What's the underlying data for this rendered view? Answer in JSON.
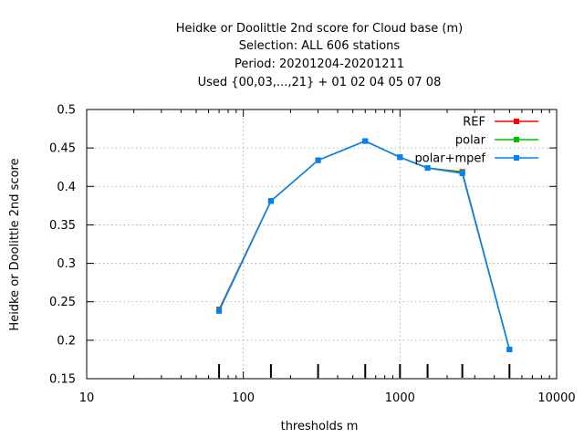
{
  "chart_data": {
    "type": "line",
    "title_lines": [
      "Heidke or Doolittle 2nd score  for Cloud base (m)",
      "Selection: ALL    606 stations",
      "Period: 20201204-20201211",
      "Used {00,03,...,21} + 01 02 04 05 07 08"
    ],
    "xlabel": "thresholds m",
    "ylabel": "Heidke or Doolittle 2nd score",
    "x_scale": "log",
    "xlim": [
      10,
      10000
    ],
    "ylim": [
      0.15,
      0.5
    ],
    "x_ticks": [
      10,
      100,
      1000,
      10000
    ],
    "x_tick_labels": [
      "10",
      "100",
      "1000",
      "10000"
    ],
    "y_ticks": [
      0.15,
      0.2,
      0.25,
      0.3,
      0.35,
      0.4,
      0.45,
      0.5
    ],
    "y_tick_labels": [
      "0.15",
      "0.2",
      "0.25",
      "0.3",
      "0.35",
      "0.4",
      "0.45",
      "0.5"
    ],
    "grid": true,
    "legend_position": "top-right",
    "threshold_markers": [
      70,
      150,
      300,
      600,
      1000,
      1500,
      2500,
      5000
    ],
    "x": [
      70,
      150,
      300,
      600,
      1000,
      1500,
      2500,
      5000
    ],
    "series": [
      {
        "name": "REF",
        "color": "#ff0000",
        "values": [
          0.24,
          0.381,
          0.434,
          0.459,
          0.438,
          0.424,
          0.419,
          0.188
        ]
      },
      {
        "name": "polar",
        "color": "#00c000",
        "values": [
          0.239,
          0.381,
          0.434,
          0.459,
          0.438,
          0.424,
          0.418,
          0.188
        ]
      },
      {
        "name": "polar+mpef",
        "color": "#0080ff",
        "values": [
          0.238,
          0.381,
          0.434,
          0.459,
          0.438,
          0.424,
          0.417,
          0.188
        ]
      }
    ]
  }
}
